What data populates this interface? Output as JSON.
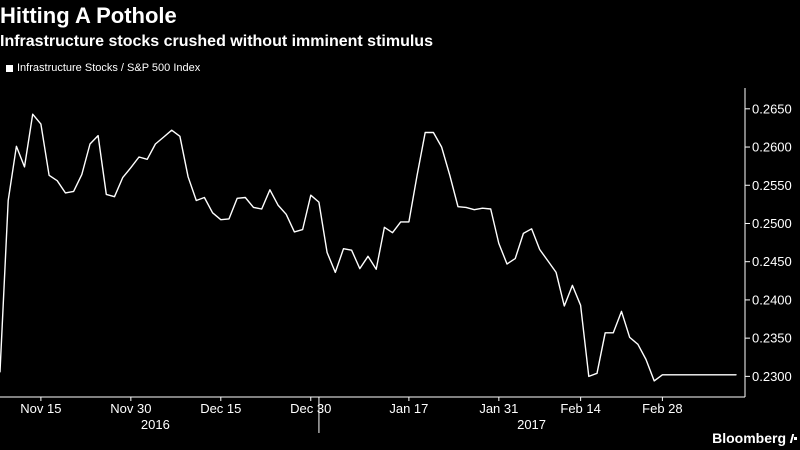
{
  "header": {
    "title": "Hitting A Pothole",
    "subtitle": "Infrastructure stocks crushed without imminent stimulus"
  },
  "legend": {
    "label": "Infrastructure Stocks / S&P 500 Index"
  },
  "branding": {
    "name": "Bloomberg"
  },
  "colors": {
    "background": "#000000",
    "line": "#ffffff",
    "axis": "#ffffff",
    "text": "#ffffff"
  },
  "chart_data": {
    "type": "line",
    "title": "Hitting A Pothole",
    "subtitle": "Infrastructure stocks crushed without imminent stimulus",
    "xlabel": "",
    "ylabel": "",
    "grid": false,
    "legend_position": "top-left",
    "y_axis_side": "right",
    "ylim": [
      0.2273,
      0.2672
    ],
    "yticks": [
      "0.2300",
      "0.2350",
      "0.2400",
      "0.2450",
      "0.2500",
      "0.2550",
      "0.2600",
      "0.2650"
    ],
    "xticks": [
      {
        "label": "Nov 15",
        "index": 5
      },
      {
        "label": "Nov 30",
        "index": 16
      },
      {
        "label": "Dec 15",
        "index": 27
      },
      {
        "label": "Dec 30",
        "index": 38
      },
      {
        "label": "Jan 17",
        "index": 50
      },
      {
        "label": "Jan 31",
        "index": 61
      },
      {
        "label": "Feb 14",
        "index": 71
      },
      {
        "label": "Feb 28",
        "index": 81
      }
    ],
    "year_labels": [
      {
        "label": "2016",
        "index": 19
      },
      {
        "label": "2017",
        "index": 65
      }
    ],
    "year_divider_index": 39,
    "x_count": 91,
    "series": [
      {
        "name": "Infrastructure Stocks / S&P 500 Index",
        "x": [
          0,
          1,
          2,
          3,
          4,
          5,
          6,
          7,
          8,
          9,
          10,
          11,
          12,
          13,
          14,
          15,
          16,
          17,
          18,
          19,
          20,
          21,
          22,
          23,
          24,
          25,
          26,
          27,
          28,
          29,
          30,
          31,
          32,
          33,
          34,
          35,
          36,
          37,
          38,
          39,
          40,
          41,
          42,
          43,
          44,
          45,
          46,
          47,
          48,
          49,
          50,
          51,
          52,
          53,
          54,
          55,
          56,
          57,
          58,
          59,
          60,
          61,
          62,
          63,
          64,
          65,
          66,
          67,
          68,
          69,
          70,
          71,
          72,
          73,
          74,
          75,
          76,
          77,
          78,
          79,
          80,
          81,
          82,
          83,
          84,
          85,
          86,
          87,
          88,
          89,
          90
        ],
        "values": [
          0.2306,
          0.253,
          0.2601,
          0.2574,
          0.2643,
          0.263,
          0.2563,
          0.2556,
          0.254,
          0.2542,
          0.2564,
          0.2604,
          0.2615,
          0.2538,
          0.2535,
          0.256,
          0.2573,
          0.2587,
          0.2584,
          0.2604,
          0.2613,
          0.2622,
          0.2614,
          0.2561,
          0.253,
          0.2534,
          0.2514,
          0.2505,
          0.2506,
          0.2533,
          0.2534,
          0.2521,
          0.2519,
          0.2544,
          0.2524,
          0.2512,
          0.2489,
          0.2492,
          0.2537,
          0.2528,
          0.2462,
          0.2436,
          0.2467,
          0.2465,
          0.2441,
          0.2457,
          0.244,
          0.2495,
          0.2488,
          0.2502,
          0.2502,
          0.2563,
          0.2619,
          0.2619,
          0.26,
          0.2563,
          0.2522,
          0.2521,
          0.2518,
          0.252,
          0.2519,
          0.2474,
          0.2447,
          0.2454,
          0.2487,
          0.2493,
          0.2466,
          0.2451,
          0.2436,
          0.2392,
          0.2419,
          0.2393,
          0.23,
          0.2304,
          0.2357,
          0.2357,
          0.2385,
          0.2351,
          0.2342,
          0.2322,
          0.2294,
          0.2302,
          0.2302,
          0.2302,
          0.2302,
          0.2302,
          0.2302,
          0.2302,
          0.2302,
          0.2302,
          0.2302
        ]
      }
    ]
  }
}
